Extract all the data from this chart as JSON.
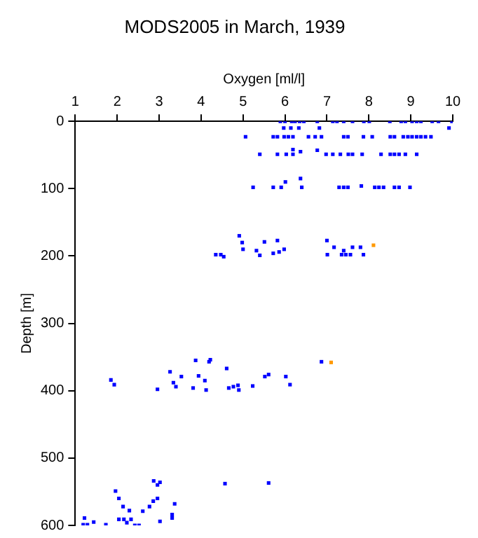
{
  "chart_data": {
    "type": "scatter",
    "title": "MODS2005 in March, 1939",
    "xlabel": "Oxygen [ml/l]",
    "ylabel": "Depth [m]",
    "xlim": [
      1,
      10
    ],
    "xticks": [
      1,
      2,
      3,
      4,
      5,
      6,
      7,
      8,
      9,
      10
    ],
    "ylim": [
      600,
      0
    ],
    "yticks": [
      0,
      100,
      200,
      300,
      400,
      500,
      600
    ],
    "grid": false,
    "legend": false,
    "marker": "square",
    "series": [
      {
        "color": "#0000ff",
        "x": [
          5.89,
          6.0,
          6.16,
          6.24,
          6.35,
          6.45,
          6.77,
          7.14,
          7.24,
          7.4,
          7.61,
          7.88,
          8.01,
          8.5,
          8.77,
          8.87,
          9.03,
          9.14,
          9.24,
          9.51,
          9.66,
          9.98,
          5.97,
          6.14,
          6.33,
          6.82,
          9.91,
          5.06,
          5.72,
          5.82,
          5.98,
          6.08,
          6.19,
          6.56,
          6.72,
          6.87,
          7.4,
          7.5,
          7.87,
          8.08,
          8.51,
          8.61,
          8.82,
          8.93,
          9.03,
          9.14,
          9.24,
          9.35,
          9.48,
          6.19,
          6.77,
          6.37,
          5.4,
          5.82,
          6.03,
          6.19,
          6.98,
          7.14,
          7.32,
          7.51,
          7.61,
          7.84,
          8.29,
          8.51,
          8.61,
          8.72,
          8.87,
          9.14,
          6.37,
          6.01,
          7.82,
          5.24,
          5.72,
          5.91,
          6.4,
          7.29,
          7.4,
          7.5,
          8.14,
          8.24,
          8.35,
          8.61,
          8.72,
          8.98,
          4.91,
          5.82,
          7.0,
          4.98,
          5.51,
          5.0,
          7.17,
          7.4,
          7.61,
          7.8,
          5.98,
          5.32,
          5.86,
          5.72,
          4.35,
          4.47,
          5.4,
          7.01,
          7.35,
          7.45,
          7.56,
          7.87,
          4.54,
          6.87,
          3.87,
          4.19,
          4.22,
          4.61,
          3.26,
          3.53,
          3.94,
          4.09,
          5.61,
          5.52,
          6.02,
          6.12,
          1.85,
          1.93,
          2.96,
          3.34,
          3.4,
          3.81,
          4.12,
          4.66,
          4.77,
          4.88,
          4.9,
          5.23,
          2.87,
          2.96,
          3.02,
          4.57,
          5.61,
          1.96,
          2.04,
          2.96,
          2.86,
          3.37,
          2.14,
          2.29,
          2.61,
          2.77,
          1.22,
          2.04,
          2.16,
          2.33,
          3.31,
          3.31,
          1.44,
          2.23,
          3.02,
          1.19,
          1.29,
          1.73,
          2.42,
          2.52
        ],
        "values": [
          0,
          0,
          0,
          0,
          0,
          0,
          0,
          0,
          0,
          0,
          0,
          0,
          0,
          0,
          0,
          0,
          0,
          0,
          0,
          0,
          0,
          0,
          10,
          10,
          10,
          10,
          10,
          23,
          23,
          23,
          23,
          23,
          23,
          23,
          23,
          23,
          23,
          23,
          23,
          23,
          23,
          23,
          23,
          23,
          23,
          23,
          23,
          23,
          23,
          42,
          43,
          45,
          49,
          49,
          49,
          49,
          49,
          49,
          49,
          49,
          49,
          49,
          49,
          49,
          49,
          49,
          49,
          49,
          85,
          90,
          96,
          98,
          98,
          98,
          98,
          98,
          98,
          98,
          98,
          98,
          98,
          98,
          98,
          98,
          170,
          177,
          177,
          180,
          179,
          190,
          187,
          192,
          187,
          187,
          190,
          192,
          194,
          196,
          198,
          198,
          199,
          198,
          198,
          198,
          198,
          198,
          201,
          357,
          355,
          357,
          354,
          367,
          372,
          379,
          378,
          385,
          376,
          379,
          379,
          391,
          384,
          391,
          398,
          388,
          394,
          396,
          399,
          396,
          394,
          392,
          399,
          393,
          534,
          540,
          536,
          538,
          537,
          549,
          560,
          560,
          564,
          568,
          572,
          578,
          579,
          572,
          589,
          591,
          591,
          591,
          584,
          589,
          595,
          596,
          594,
          599,
          599,
          599,
          600,
          600
        ]
      },
      {
        "color": "#ff9900",
        "x": [
          8.11,
          7.1
        ],
        "values": [
          184,
          358
        ]
      }
    ]
  }
}
